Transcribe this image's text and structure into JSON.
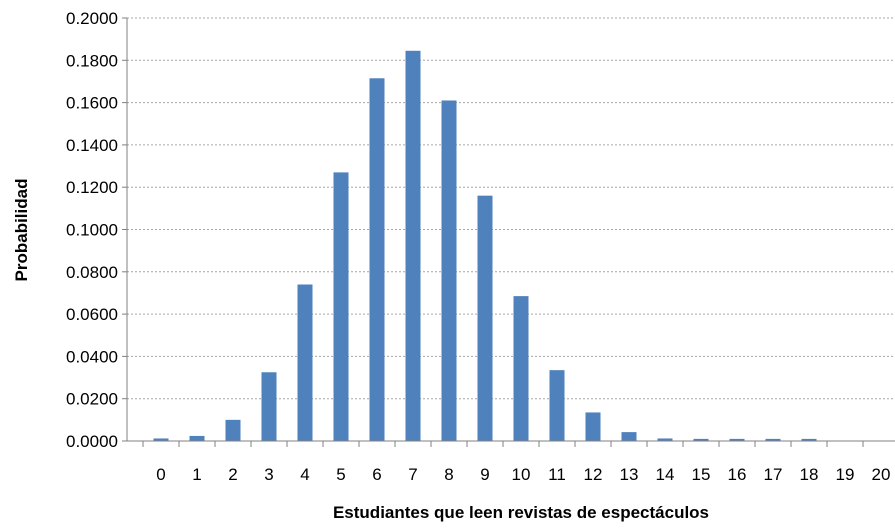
{
  "chart_data": {
    "type": "bar",
    "title": "",
    "xlabel": "Estudiantes que leen revistas de espectáculos",
    "ylabel": "Probabilidad",
    "categories": [
      "0",
      "1",
      "2",
      "3",
      "4",
      "5",
      "6",
      "7",
      "8",
      "9",
      "10",
      "11",
      "12",
      "13",
      "14",
      "15",
      "16",
      "17",
      "18",
      "19",
      "20"
    ],
    "values": [
      0.0012,
      0.0024,
      0.01,
      0.0325,
      0.074,
      0.127,
      0.1715,
      0.1845,
      0.161,
      0.116,
      0.0685,
      0.0335,
      0.0135,
      0.0042,
      0.0012,
      0.001,
      0.001,
      0.001,
      0.001,
      0.0,
      0.0
    ],
    "ylim": [
      0,
      0.2
    ],
    "yticks": [
      "0.0000",
      "0.0200",
      "0.0400",
      "0.0600",
      "0.0800",
      "0.1000",
      "0.1200",
      "0.1400",
      "0.1600",
      "0.1800",
      "0.2000"
    ],
    "grid": true,
    "colors": {
      "bar": "#4f81bd",
      "grid": "#a6a6a6",
      "axis": "#808080"
    }
  }
}
